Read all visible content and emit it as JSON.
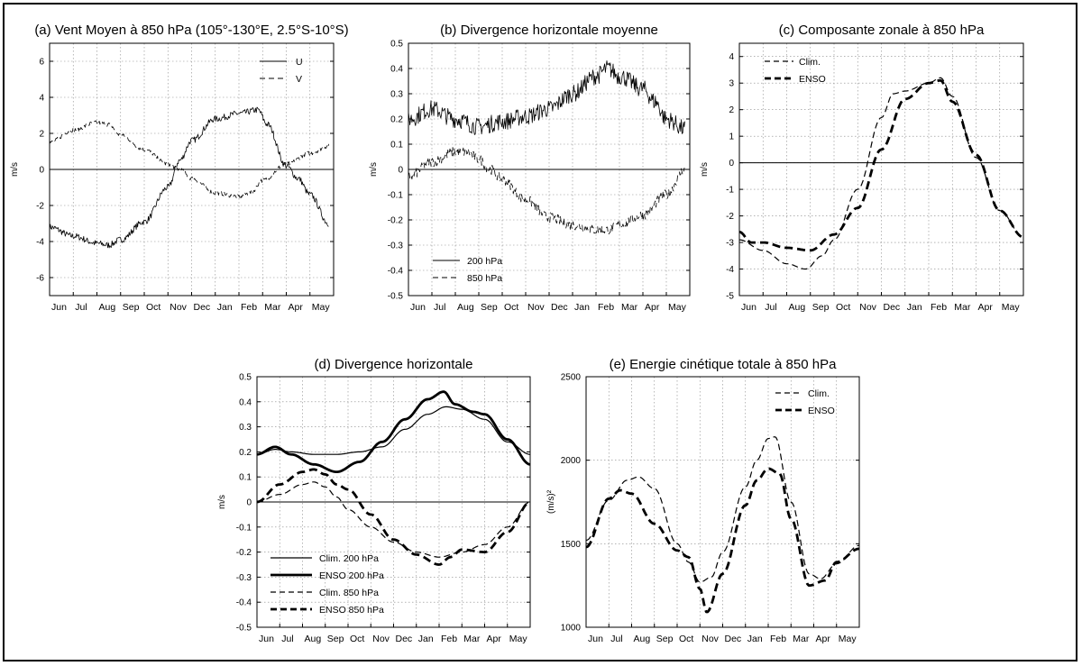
{
  "chart_data": [
    {
      "id": "a",
      "type": "line",
      "title": "(a) Vent Moyen à 850 hPa (105°-130°E, 2.5°S-10°S)",
      "xlabel": "",
      "ylabel": "m/s",
      "ylim": [
        -7,
        7
      ],
      "yticks": [
        -6,
        -4,
        -2,
        0,
        2,
        4,
        6
      ],
      "ytick_labels": [
        "-6",
        "-4",
        "-2",
        "0",
        "2",
        "4",
        "6"
      ],
      "categories": [
        "Jun",
        "Jul",
        "Aug",
        "Sep",
        "Oct",
        "Nov",
        "Dec",
        "Jan",
        "Feb",
        "Mar",
        "Apr",
        "May"
      ],
      "grid": true,
      "legend": {
        "position": "top-right",
        "entries": [
          "U",
          "V"
        ]
      },
      "series": [
        {
          "name": "U",
          "style": "solid",
          "width": 1,
          "noise": 0.18,
          "x": [
            0,
            1,
            2,
            2.5,
            3,
            4,
            5,
            5.5,
            6,
            7,
            8,
            8.8,
            9.2,
            10,
            10.5,
            11,
            11.8
          ],
          "values": [
            -3.2,
            -3.7,
            -4.1,
            -4.2,
            -3.9,
            -2.9,
            -1.0,
            0.5,
            1.6,
            2.8,
            3.1,
            3.3,
            2.5,
            0.2,
            -0.5,
            -1.4,
            -3.0
          ]
        },
        {
          "name": "V",
          "style": "dashed",
          "width": 1,
          "noise": 0.12,
          "x": [
            0,
            1,
            2,
            2.5,
            3,
            4,
            5,
            5.5,
            6,
            7,
            8,
            8.5,
            9,
            10,
            11,
            11.8
          ],
          "values": [
            1.5,
            2.2,
            2.6,
            2.5,
            1.9,
            1.1,
            0.3,
            0.0,
            -0.5,
            -1.3,
            -1.5,
            -1.3,
            -0.6,
            0.3,
            0.9,
            1.3
          ]
        }
      ]
    },
    {
      "id": "b",
      "type": "line",
      "title": "(b) Divergence horizontale moyenne",
      "xlabel": "",
      "ylabel": "m/s",
      "ylim": [
        -0.5,
        0.5
      ],
      "yticks": [
        -0.5,
        -0.4,
        -0.3,
        -0.2,
        -0.1,
        0,
        0.1,
        0.2,
        0.3,
        0.4,
        0.5
      ],
      "ytick_labels": [
        "-0.5",
        "-0.4",
        "-0.3",
        "-0.2",
        "-0.1",
        "0",
        "0.1",
        "0.2",
        "0.3",
        "0.4",
        "0.5"
      ],
      "categories": [
        "Jun",
        "Jul",
        "Aug",
        "Sep",
        "Oct",
        "Nov",
        "Dec",
        "Jan",
        "Feb",
        "Mar",
        "Apr",
        "May"
      ],
      "grid": true,
      "legend": {
        "position": "bottom-left",
        "entries": [
          "200 hPa",
          "850 hPa"
        ]
      },
      "series": [
        {
          "name": "200 hPa",
          "style": "solid",
          "width": 1,
          "noise": 0.035,
          "x": [
            0,
            1,
            2,
            3,
            4,
            5,
            6,
            7,
            8,
            8.5,
            9,
            10,
            10.5,
            11,
            11.8
          ],
          "values": [
            0.2,
            0.24,
            0.2,
            0.17,
            0.19,
            0.21,
            0.24,
            0.3,
            0.37,
            0.4,
            0.37,
            0.32,
            0.27,
            0.2,
            0.16
          ]
        },
        {
          "name": "850 hPa",
          "style": "dashed",
          "width": 1,
          "noise": 0.02,
          "x": [
            0,
            1,
            2,
            2.5,
            3,
            3.5,
            4,
            5,
            6,
            7,
            8,
            8.5,
            9,
            10,
            11,
            11.8
          ],
          "values": [
            -0.03,
            0.03,
            0.07,
            0.07,
            0.04,
            0.0,
            -0.04,
            -0.12,
            -0.19,
            -0.22,
            -0.24,
            -0.24,
            -0.22,
            -0.18,
            -0.1,
            0.0
          ]
        }
      ]
    },
    {
      "id": "c",
      "type": "line",
      "title": "(c) Composante zonale à 850 hPa",
      "xlabel": "",
      "ylabel": "m/s",
      "ylim": [
        -5,
        4.5
      ],
      "yticks": [
        -5,
        -4,
        -3,
        -2,
        -1,
        0,
        1,
        2,
        3,
        4
      ],
      "ytick_labels": [
        "-5",
        "-4",
        "-3",
        "-2",
        "-1",
        "0",
        "1",
        "2",
        "3",
        "4"
      ],
      "categories": [
        "Jun",
        "Jul",
        "Aug",
        "Sep",
        "Oct",
        "Nov",
        "Dec",
        "Jan",
        "Feb",
        "Mar",
        "Apr",
        "May"
      ],
      "grid": true,
      "legend": {
        "position": "top-left",
        "entries": [
          "Clim.",
          "ENSO"
        ]
      },
      "series": [
        {
          "name": "Clim.",
          "style": "dashed",
          "width": 1.2,
          "x": [
            0,
            1,
            2,
            2.8,
            3.5,
            4,
            5,
            6,
            6.5,
            7,
            8,
            8.5,
            9,
            10,
            11,
            12
          ],
          "values": [
            -2.9,
            -3.3,
            -3.8,
            -4.0,
            -3.5,
            -2.9,
            -1.0,
            1.7,
            2.6,
            2.7,
            3.0,
            3.2,
            2.5,
            0.2,
            -1.8,
            -2.8
          ]
        },
        {
          "name": "ENSO",
          "style": "dashed",
          "width": 2.8,
          "x": [
            0,
            0.5,
            1,
            2,
            3,
            4,
            5,
            6,
            7,
            8,
            8.5,
            9,
            10,
            11,
            12
          ],
          "values": [
            -2.6,
            -3.0,
            -3.0,
            -3.2,
            -3.3,
            -2.7,
            -1.7,
            0.5,
            2.4,
            3.0,
            3.1,
            2.3,
            0.3,
            -1.8,
            -2.8
          ]
        }
      ]
    },
    {
      "id": "d",
      "type": "line",
      "title": "(d) Divergence horizontale",
      "xlabel": "",
      "ylabel": "m/s",
      "ylim": [
        -0.5,
        0.5
      ],
      "yticks": [
        -0.5,
        -0.4,
        -0.3,
        -0.2,
        -0.1,
        0,
        0.1,
        0.2,
        0.3,
        0.4,
        0.5
      ],
      "ytick_labels": [
        "-0.5",
        "-0.4",
        "-0.3",
        "-0.2",
        "-0.1",
        "0",
        "0.1",
        "0.2",
        "0.3",
        "0.4",
        "0.5"
      ],
      "categories": [
        "Jun",
        "Jul",
        "Aug",
        "Sep",
        "Oct",
        "Nov",
        "Dec",
        "Jan",
        "Feb",
        "Mar",
        "Apr",
        "May"
      ],
      "grid": true,
      "legend": {
        "position": "bottom-left",
        "entries": [
          "Clim. 200 hPa",
          "ENSO 200 hPa",
          "Clim. 850 hPa",
          "ENSO 850 hPa"
        ]
      },
      "series": [
        {
          "name": "Clim. 200 hPa",
          "style": "solid",
          "width": 1.2,
          "x": [
            0,
            0.8,
            1.5,
            2.5,
            3.5,
            4.5,
            5.5,
            6.5,
            7.5,
            8.3,
            9,
            10,
            11,
            12
          ],
          "values": [
            0.19,
            0.21,
            0.2,
            0.19,
            0.19,
            0.2,
            0.22,
            0.29,
            0.35,
            0.38,
            0.37,
            0.33,
            0.24,
            0.19
          ]
        },
        {
          "name": "ENSO 200 hPa",
          "style": "solid",
          "width": 2.8,
          "x": [
            0,
            0.8,
            1.5,
            2.5,
            3.5,
            4.5,
            5.5,
            6.5,
            7.5,
            8.2,
            8.7,
            9.5,
            10,
            11,
            12
          ],
          "values": [
            0.19,
            0.22,
            0.19,
            0.15,
            0.12,
            0.16,
            0.24,
            0.33,
            0.41,
            0.44,
            0.39,
            0.36,
            0.35,
            0.25,
            0.15
          ]
        },
        {
          "name": "Clim. 850 hPa",
          "style": "dashed",
          "width": 1.2,
          "x": [
            0,
            1,
            2,
            2.5,
            3,
            3.5,
            4,
            5,
            6,
            7,
            8,
            9,
            10,
            11,
            12
          ],
          "values": [
            0.0,
            0.03,
            0.07,
            0.08,
            0.06,
            0.02,
            -0.03,
            -0.1,
            -0.16,
            -0.2,
            -0.22,
            -0.2,
            -0.17,
            -0.1,
            0.0
          ]
        },
        {
          "name": "ENSO 850 hPa",
          "style": "dashed",
          "width": 2.8,
          "x": [
            0,
            1,
            2,
            2.5,
            3,
            3.5,
            4,
            5,
            6,
            7,
            8,
            8.5,
            9,
            10,
            11,
            12
          ],
          "values": [
            0.0,
            0.07,
            0.12,
            0.13,
            0.11,
            0.07,
            0.05,
            -0.05,
            -0.15,
            -0.21,
            -0.25,
            -0.22,
            -0.19,
            -0.2,
            -0.12,
            0.0
          ]
        }
      ]
    },
    {
      "id": "e",
      "type": "line",
      "title": "(e) Energie cinétique totale à 850 hPa",
      "xlabel": "",
      "ylabel": "(m/s)²",
      "ylim": [
        1000,
        2500
      ],
      "yticks": [
        1000,
        1500,
        2000,
        2500
      ],
      "ytick_labels": [
        "1000",
        "1500",
        "2000",
        "2500"
      ],
      "categories": [
        "Jun",
        "Jul",
        "Aug",
        "Sep",
        "Oct",
        "Nov",
        "Dec",
        "Jan",
        "Feb",
        "Mar",
        "Apr",
        "May"
      ],
      "grid": true,
      "legend": {
        "position": "top-right",
        "entries": [
          "Clim.",
          "ENSO"
        ]
      },
      "series": [
        {
          "name": "Clim.",
          "style": "dashed",
          "width": 1.2,
          "x": [
            0,
            1,
            1.8,
            2.3,
            3,
            4,
            4.5,
            5,
            5.5,
            6,
            7,
            7.5,
            8,
            8.3,
            9,
            9.8,
            10.3,
            11,
            12
          ],
          "values": [
            1520,
            1760,
            1880,
            1900,
            1830,
            1500,
            1390,
            1270,
            1300,
            1450,
            1840,
            2000,
            2130,
            2140,
            1750,
            1320,
            1290,
            1380,
            1490
          ]
        },
        {
          "name": "ENSO",
          "style": "dashed",
          "width": 2.8,
          "x": [
            0,
            1,
            1.5,
            2,
            3,
            4,
            4.5,
            5,
            5.3,
            6,
            7,
            7.5,
            8,
            8.5,
            9,
            9.8,
            10.5,
            11,
            12
          ],
          "values": [
            1480,
            1770,
            1820,
            1800,
            1620,
            1460,
            1420,
            1230,
            1090,
            1320,
            1730,
            1880,
            1950,
            1920,
            1650,
            1250,
            1280,
            1390,
            1470
          ]
        }
      ]
    }
  ]
}
